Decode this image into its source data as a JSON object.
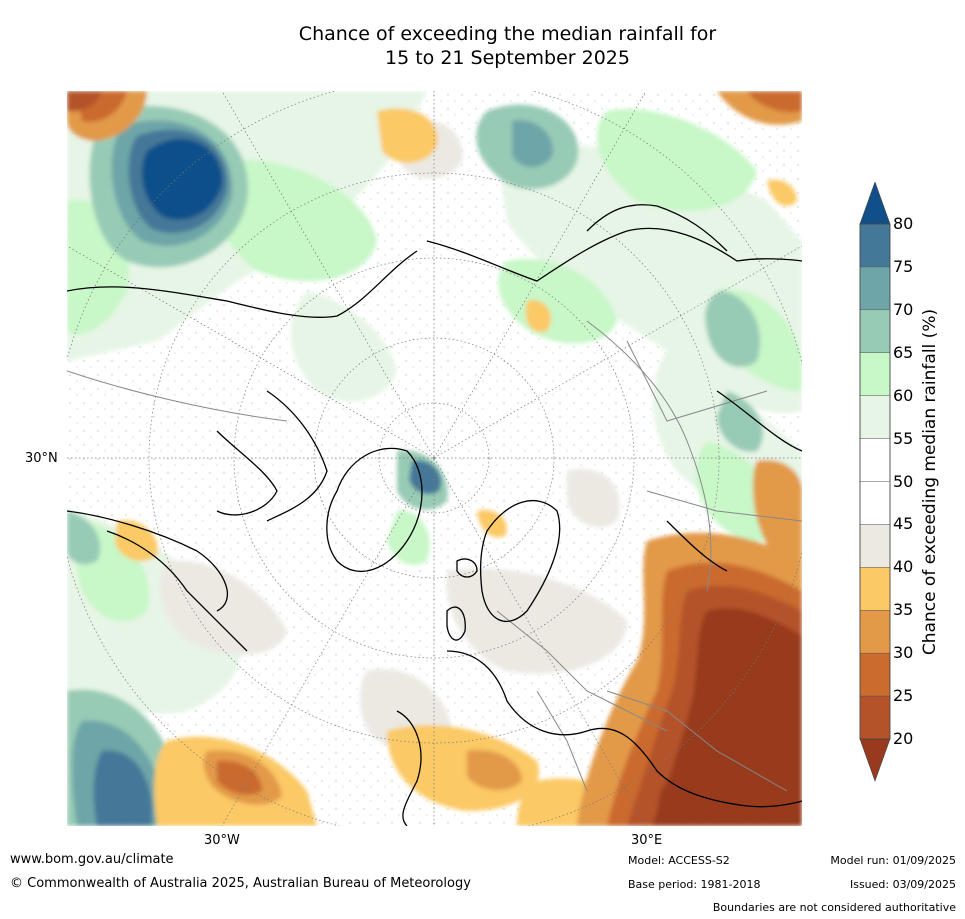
{
  "title_line1": "Chance of exceeding the median rainfall for",
  "title_line2": "15 to 21 September 2025",
  "axis_labels": {
    "lat": "30°N",
    "lon_west": "30°W",
    "lon_east": "30°E"
  },
  "colorbar": {
    "label": "Chance of exceeding median rainfall (%)",
    "ticks": [
      "20",
      "25",
      "30",
      "35",
      "40",
      "45",
      "50",
      "55",
      "60",
      "65",
      "70",
      "75",
      "80"
    ],
    "colors": {
      "below20": "#973a1e",
      "b20_25": "#b4522a",
      "b25_30": "#cb6b2e",
      "b30_35": "#e29a48",
      "b35_40": "#fbc965",
      "b40_45": "#ece9e3",
      "b45_50": "#ffffff",
      "b50_55": "#ffffff",
      "b55_60": "#e6f5e6",
      "b60_65": "#c8f7c8",
      "b65_70": "#98cbb5",
      "b70_75": "#6ea5a8",
      "b75_80": "#447898",
      "above80": "#114f8a"
    }
  },
  "footer": {
    "website": "www.bom.gov.au/climate",
    "copyright": "© Commonwealth of Australia 2025, Australian Bureau of Meteorology",
    "model": "Model: ACCESS-S2",
    "base_period": "Base period: 1981-2018",
    "model_run": "Model run: 01/09/2025",
    "issued": "Issued: 03/09/2025",
    "disclaimer": "Boundaries are not considered authoritative"
  }
}
